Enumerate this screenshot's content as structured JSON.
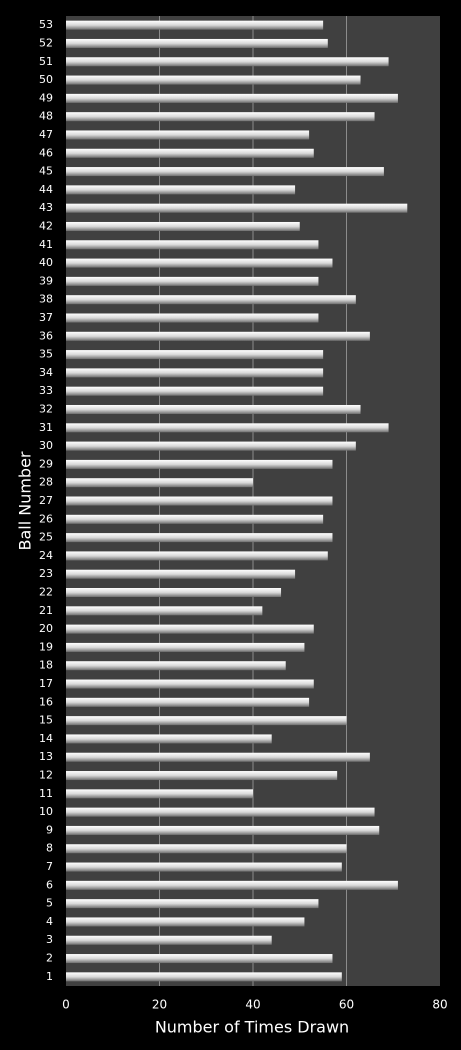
{
  "chart_data": {
    "type": "barh",
    "x_label": "Number of Times Drawn",
    "y_label": "Ball Number",
    "categories": [
      "1",
      "2",
      "3",
      "4",
      "5",
      "6",
      "7",
      "8",
      "9",
      "10",
      "11",
      "12",
      "13",
      "14",
      "15",
      "16",
      "17",
      "18",
      "19",
      "20",
      "21",
      "22",
      "23",
      "24",
      "25",
      "26",
      "27",
      "28",
      "29",
      "30",
      "31",
      "32",
      "33",
      "34",
      "35",
      "36",
      "37",
      "38",
      "39",
      "40",
      "41",
      "42",
      "43",
      "44",
      "45",
      "46",
      "47",
      "48",
      "49",
      "50",
      "51",
      "52",
      "53"
    ],
    "values": [
      59,
      57,
      44,
      51,
      54,
      71,
      59,
      60,
      67,
      66,
      40,
      58,
      65,
      44,
      60,
      52,
      53,
      47,
      51,
      53,
      42,
      46,
      49,
      56,
      57,
      55,
      57,
      40,
      57,
      62,
      69,
      63,
      55,
      55,
      55,
      65,
      54,
      62,
      54,
      57,
      54,
      50,
      73,
      49,
      68,
      53,
      52,
      66,
      71,
      63,
      69,
      56,
      55
    ],
    "color": "#d9d9d9",
    "xlim": [
      0,
      80
    ],
    "xticks": [
      0,
      20,
      40,
      60,
      80
    ],
    "grid": true
  }
}
